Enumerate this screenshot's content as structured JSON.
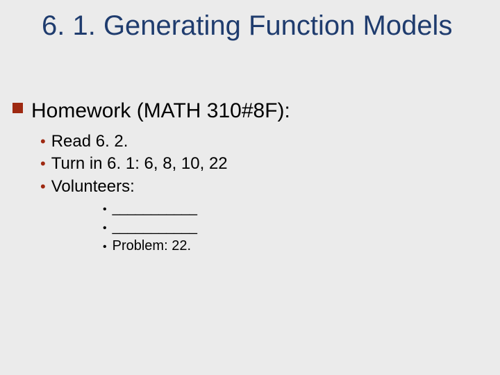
{
  "colors": {
    "background": "#ebebeb",
    "title": "#1f3c6e",
    "bullet_square": "#9e2911",
    "bullet_round": "#9e2911",
    "body_text": "#000000"
  },
  "typography": {
    "family": "Verdana",
    "title_fontsize": 40,
    "homework_fontsize": 30,
    "sub_fontsize": 24,
    "subsub_fontsize": 20
  },
  "title": "6. 1. Generating Function Models",
  "homework": {
    "label": "Homework (MATH 310#8F):",
    "items": [
      "Read 6. 2.",
      "Turn in 6. 1: 6, 8, 10, 22",
      "Volunteers:"
    ],
    "volunteer_sub": [
      "___________",
      "___________",
      "Problem: 22."
    ]
  }
}
